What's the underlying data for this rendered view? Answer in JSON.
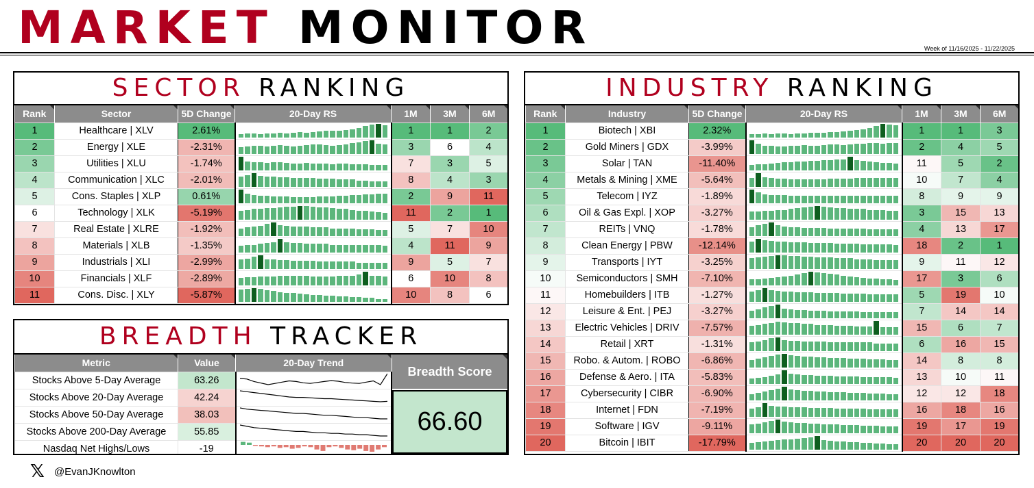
{
  "header": {
    "title_red": "MARKET",
    "title_black": "MONITOR",
    "week": "Week of 11/16/2025 - 11/22/2025"
  },
  "colors": {
    "accent_red": "#b0001e",
    "header_gray": "#8c8c8c",
    "bar_green": "#5cb67c",
    "bar_dark": "#0e5e1f",
    "bar_red": "#e07a72"
  },
  "sector": {
    "title_red": "SECTOR",
    "title_black": "RANKING",
    "columns": [
      "Rank",
      "Sector",
      "5D Change",
      "20-Day RS",
      "1M",
      "3M",
      "6M"
    ],
    "rows": [
      {
        "rank": "1",
        "name": "Healthcare | XLV",
        "change": "2.61%",
        "m1": "1",
        "m3": "1",
        "m6": "2",
        "rs": [
          5,
          6,
          6,
          5,
          6,
          6,
          7,
          6,
          7,
          8,
          7,
          8,
          9,
          10,
          10,
          11,
          12,
          13,
          15,
          18,
          20,
          21,
          19
        ]
      },
      {
        "rank": "2",
        "name": "Energy | XLE",
        "change": "-2.31%",
        "m1": "3",
        "m3": "6",
        "m6": "4",
        "rs": [
          10,
          11,
          12,
          12,
          11,
          12,
          13,
          12,
          11,
          12,
          13,
          14,
          14,
          13,
          12,
          13,
          14,
          16,
          17,
          19,
          20,
          15,
          14
        ]
      },
      {
        "rank": "3",
        "name": "Utilities | XLU",
        "change": "-1.74%",
        "m1": "7",
        "m3": "3",
        "m6": "5",
        "rs": [
          18,
          12,
          11,
          11,
          10,
          11,
          11,
          10,
          9,
          9,
          10,
          9,
          9,
          9,
          8,
          9,
          9,
          8,
          8,
          8,
          7,
          7,
          7
        ]
      },
      {
        "rank": "4",
        "name": "Communication | XLC",
        "change": "-2.01%",
        "m1": "8",
        "m3": "4",
        "m6": "3",
        "rs": [
          14,
          16,
          19,
          15,
          14,
          14,
          13,
          13,
          12,
          12,
          12,
          12,
          11,
          11,
          11,
          10,
          10,
          10,
          9,
          9,
          8,
          8,
          8
        ]
      },
      {
        "rank": "5",
        "name": "Cons. Staples | XLP",
        "change": "0.61%",
        "m1": "2",
        "m3": "9",
        "m6": "11",
        "rs": [
          20,
          14,
          12,
          11,
          11,
          10,
          10,
          10,
          9,
          9,
          9,
          9,
          10,
          10,
          10,
          11,
          11,
          12,
          12,
          13,
          13,
          14,
          14
        ]
      },
      {
        "rank": "6",
        "name": "Technology | XLK",
        "change": "-5.19%",
        "m1": "11",
        "m3": "2",
        "m6": "1",
        "rs": [
          12,
          13,
          14,
          14,
          15,
          15,
          16,
          17,
          17,
          18,
          18,
          17,
          16,
          16,
          15,
          14,
          14,
          13,
          12,
          12,
          11,
          10,
          9
        ]
      },
      {
        "rank": "7",
        "name": "Real Estate | XLRE",
        "change": "-1.92%",
        "m1": "5",
        "m3": "7",
        "m6": "10",
        "rs": [
          9,
          10,
          11,
          12,
          14,
          16,
          13,
          12,
          11,
          11,
          11,
          10,
          10,
          10,
          9,
          9,
          9,
          9,
          8,
          8,
          8,
          7,
          7
        ]
      },
      {
        "rank": "8",
        "name": "Materials | XLB",
        "change": "-1.35%",
        "m1": "4",
        "m3": "11",
        "m6": "9",
        "rs": [
          8,
          9,
          9,
          10,
          11,
          12,
          16,
          12,
          11,
          11,
          10,
          10,
          10,
          10,
          9,
          9,
          9,
          9,
          9,
          9,
          9,
          9,
          8
        ]
      },
      {
        "rank": "9",
        "name": "Industrials | XLI",
        "change": "-2.99%",
        "m1": "9",
        "m3": "5",
        "m6": "7",
        "rs": [
          12,
          13,
          15,
          17,
          12,
          12,
          11,
          11,
          10,
          10,
          10,
          10,
          9,
          9,
          9,
          9,
          9,
          9,
          8,
          8,
          8,
          8,
          8
        ]
      },
      {
        "rank": "10",
        "name": "Financials | XLF",
        "change": "-2.89%",
        "m1": "6",
        "m3": "10",
        "m6": "8",
        "rs": [
          10,
          11,
          11,
          12,
          12,
          12,
          13,
          13,
          13,
          13,
          13,
          12,
          12,
          12,
          12,
          13,
          13,
          13,
          14,
          18,
          13,
          13,
          12
        ]
      },
      {
        "rank": "11",
        "name": "Cons. Disc. | XLY",
        "change": "-5.87%",
        "m1": "10",
        "m3": "8",
        "m6": "6",
        "rs": [
          16,
          17,
          18,
          17,
          15,
          14,
          13,
          12,
          12,
          11,
          10,
          9,
          9,
          8,
          8,
          7,
          7,
          6,
          6,
          5,
          5,
          4,
          4
        ]
      }
    ]
  },
  "breadth": {
    "title_red": "BREADTH",
    "title_black": "TRACKER",
    "columns": [
      "Metric",
      "Value",
      "20-Day Trend"
    ],
    "score_label": "Breadth Score",
    "score": "66.60",
    "rows": [
      {
        "metric": "Stocks Above 5-Day Average",
        "value": "63.26",
        "trend": [
          60,
          58,
          50,
          45,
          40,
          44,
          48,
          52,
          50,
          46,
          44,
          47,
          50,
          53,
          51,
          47,
          45,
          44,
          48,
          52,
          40,
          75
        ]
      },
      {
        "metric": "Stocks Above 20-Day Average",
        "value": "42.24",
        "trend": [
          70,
          68,
          66,
          64,
          62,
          60,
          58,
          56,
          55,
          55,
          54,
          53,
          52,
          52,
          51,
          50,
          49,
          48,
          47,
          46,
          45,
          46
        ]
      },
      {
        "metric": "Stocks Above 50-Day Average",
        "value": "38.03",
        "trend": [
          62,
          60,
          59,
          58,
          57,
          56,
          55,
          54,
          53,
          53,
          52,
          51,
          50,
          50,
          49,
          48,
          47,
          46,
          46,
          45,
          44,
          44
        ]
      },
      {
        "metric": "Stocks Above 200-Day Average",
        "value": "55.85",
        "trend": [
          68,
          66,
          64,
          63,
          62,
          61,
          60,
          59,
          58,
          58,
          57,
          56,
          56,
          55,
          55,
          54,
          54,
          53,
          53,
          52,
          51,
          51
        ]
      },
      {
        "metric": "Nasdaq Net Highs/Lows",
        "value": "-19",
        "netbars": [
          4,
          3,
          -1,
          -2,
          -3,
          -2,
          -4,
          -3,
          -5,
          -4,
          -2,
          -3,
          -6,
          -8,
          -3,
          -2,
          -4,
          -6,
          -7,
          -5,
          -8,
          -9,
          -6,
          -3
        ]
      }
    ]
  },
  "industry": {
    "title_red": "INDUSTRY",
    "title_black": "RANKING",
    "columns": [
      "Rank",
      "Industry",
      "5D Change",
      "20-Day RS",
      "1M",
      "3M",
      "6M"
    ],
    "rows": [
      {
        "rank": "1",
        "name": "Biotech | XBI",
        "change": "2.32%",
        "m1": "1",
        "m3": "1",
        "m6": "3",
        "rs": [
          5,
          5,
          6,
          5,
          6,
          6,
          5,
          6,
          6,
          7,
          7,
          7,
          8,
          8,
          9,
          10,
          11,
          12,
          14,
          17,
          20,
          19,
          18
        ]
      },
      {
        "rank": "2",
        "name": "Gold Miners | GDX",
        "change": "-3.99%",
        "m1": "2",
        "m3": "4",
        "m6": "5",
        "rs": [
          20,
          15,
          12,
          12,
          11,
          11,
          12,
          12,
          13,
          12,
          12,
          13,
          14,
          14,
          13,
          14,
          15,
          15,
          16,
          16,
          15,
          16,
          16
        ]
      },
      {
        "rank": "3",
        "name": "Solar | TAN",
        "change": "-11.40%",
        "m1": "11",
        "m3": "5",
        "m6": "2",
        "rs": [
          8,
          9,
          9,
          10,
          11,
          12,
          12,
          13,
          13,
          14,
          14,
          15,
          15,
          16,
          16,
          20,
          15,
          14,
          13,
          12,
          11,
          11,
          10
        ]
      },
      {
        "rank": "4",
        "name": "Metals & Mining | XME",
        "change": "-5.64%",
        "m1": "10",
        "m3": "7",
        "m6": "4",
        "rs": [
          12,
          18,
          13,
          12,
          11,
          11,
          10,
          10,
          10,
          10,
          10,
          10,
          11,
          11,
          11,
          11,
          12,
          12,
          12,
          12,
          12,
          12,
          12
        ]
      },
      {
        "rank": "5",
        "name": "Telecom | IYZ",
        "change": "-1.89%",
        "m1": "8",
        "m3": "9",
        "m6": "9",
        "rs": [
          18,
          14,
          12,
          11,
          11,
          11,
          10,
          10,
          10,
          10,
          10,
          10,
          10,
          10,
          10,
          10,
          10,
          10,
          10,
          10,
          10,
          10,
          10
        ]
      },
      {
        "rank": "6",
        "name": "Oil & Gas Expl. | XOP",
        "change": "-3.27%",
        "m1": "3",
        "m3": "15",
        "m6": "13",
        "rs": [
          11,
          11,
          12,
          12,
          13,
          13,
          14,
          15,
          16,
          17,
          18,
          17,
          16,
          15,
          15,
          14,
          14,
          14,
          13,
          13,
          13,
          12,
          12
        ]
      },
      {
        "rank": "7",
        "name": "REITs | VNQ",
        "change": "-1.78%",
        "m1": "4",
        "m3": "13",
        "m6": "17",
        "rs": [
          12,
          14,
          16,
          18,
          14,
          13,
          12,
          12,
          11,
          11,
          11,
          11,
          10,
          10,
          10,
          10,
          10,
          10,
          9,
          9,
          9,
          9,
          9
        ]
      },
      {
        "rank": "8",
        "name": "Clean Energy | PBW",
        "change": "-12.14%",
        "m1": "18",
        "m3": "2",
        "m6": "1",
        "rs": [
          16,
          20,
          18,
          17,
          16,
          16,
          15,
          15,
          15,
          14,
          14,
          14,
          14,
          13,
          13,
          13,
          13,
          12,
          12,
          12,
          12,
          12,
          11
        ]
      },
      {
        "rank": "9",
        "name": "Transports | IYT",
        "change": "-3.25%",
        "m1": "9",
        "m3": "11",
        "m6": "12",
        "rs": [
          14,
          15,
          16,
          17,
          18,
          18,
          17,
          17,
          16,
          16,
          15,
          15,
          15,
          14,
          14,
          14,
          13,
          13,
          13,
          12,
          12,
          12,
          12
        ]
      },
      {
        "rank": "10",
        "name": "Semiconductors | SMH",
        "change": "-7.10%",
        "m1": "17",
        "m3": "3",
        "m6": "6",
        "rs": [
          8,
          8,
          9,
          10,
          11,
          12,
          13,
          14,
          16,
          18,
          17,
          16,
          15,
          14,
          13,
          12,
          11,
          10,
          9,
          9,
          8,
          8,
          7
        ]
      },
      {
        "rank": "11",
        "name": "Homebuilders | ITB",
        "change": "-1.27%",
        "m1": "5",
        "m3": "19",
        "m6": "10",
        "rs": [
          14,
          16,
          19,
          16,
          15,
          14,
          14,
          13,
          13,
          13,
          12,
          12,
          12,
          12,
          11,
          11,
          11,
          11,
          10,
          10,
          10,
          10,
          10
        ]
      },
      {
        "rank": "12",
        "name": "Leisure & Ent. | PEJ",
        "change": "-3.27%",
        "m1": "7",
        "m3": "14",
        "m6": "14",
        "rs": [
          10,
          12,
          14,
          16,
          18,
          13,
          12,
          11,
          11,
          10,
          10,
          10,
          9,
          9,
          9,
          9,
          9,
          8,
          8,
          8,
          8,
          8,
          8
        ]
      },
      {
        "rank": "13",
        "name": "Electric Vehicles | DRIV",
        "change": "-7.57%",
        "m1": "15",
        "m3": "6",
        "m6": "7",
        "rs": [
          12,
          13,
          14,
          15,
          17,
          16,
          15,
          15,
          14,
          14,
          13,
          13,
          13,
          12,
          12,
          12,
          11,
          11,
          11,
          18,
          10,
          10,
          10
        ]
      },
      {
        "rank": "14",
        "name": "Retail | XRT",
        "change": "-1.31%",
        "m1": "6",
        "m3": "16",
        "m6": "15",
        "rs": [
          10,
          11,
          13,
          15,
          16,
          13,
          12,
          12,
          11,
          11,
          11,
          11,
          10,
          10,
          10,
          10,
          10,
          10,
          10,
          9,
          9,
          9,
          9
        ]
      },
      {
        "rank": "15",
        "name": "Robo. & Autom. | ROBO",
        "change": "-6.86%",
        "m1": "14",
        "m3": "8",
        "m6": "8",
        "rs": [
          11,
          13,
          15,
          17,
          19,
          20,
          18,
          17,
          16,
          16,
          15,
          15,
          14,
          14,
          14,
          13,
          13,
          13,
          12,
          12,
          12,
          11,
          11
        ]
      },
      {
        "rank": "16",
        "name": "Defense & Aero. | ITA",
        "change": "-5.83%",
        "m1": "13",
        "m3": "10",
        "m6": "11",
        "rs": [
          8,
          9,
          10,
          12,
          14,
          20,
          15,
          14,
          13,
          13,
          12,
          12,
          12,
          11,
          11,
          11,
          11,
          10,
          10,
          10,
          10,
          10,
          9
        ]
      },
      {
        "rank": "17",
        "name": "Cybersecurity | CIBR",
        "change": "-6.90%",
        "m1": "12",
        "m3": "12",
        "m6": "18",
        "rs": [
          9,
          11,
          13,
          15,
          17,
          20,
          16,
          15,
          14,
          14,
          13,
          13,
          12,
          12,
          12,
          11,
          11,
          11,
          10,
          10,
          10,
          9,
          9
        ]
      },
      {
        "rank": "18",
        "name": "Internet | FDN",
        "change": "-7.19%",
        "m1": "16",
        "m3": "18",
        "m6": "16",
        "rs": [
          10,
          12,
          17,
          14,
          13,
          13,
          12,
          12,
          12,
          11,
          11,
          11,
          11,
          10,
          10,
          10,
          10,
          10,
          9,
          9,
          9,
          9,
          9
        ]
      },
      {
        "rank": "19",
        "name": "Software | IGV",
        "change": "-9.11%",
        "m1": "19",
        "m3": "17",
        "m6": "19",
        "rs": [
          13,
          14,
          16,
          18,
          20,
          17,
          16,
          15,
          15,
          14,
          14,
          13,
          13,
          13,
          12,
          12,
          12,
          11,
          11,
          11,
          10,
          10,
          10
        ]
      },
      {
        "rank": "20",
        "name": "Bitcoin | IBIT",
        "change": "-17.79%",
        "m1": "20",
        "m3": "20",
        "m6": "20",
        "rs": [
          10,
          11,
          12,
          13,
          14,
          15,
          15,
          16,
          17,
          18,
          20,
          14,
          13,
          12,
          12,
          11,
          11,
          10,
          10,
          9,
          9,
          8,
          8
        ]
      }
    ]
  },
  "footer": {
    "icon": "x-logo-icon",
    "handle": "@EvanJKnowlton"
  }
}
